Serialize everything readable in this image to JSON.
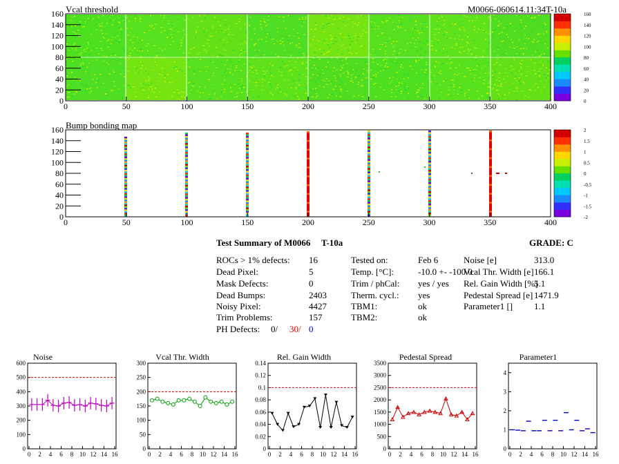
{
  "header": {
    "module_id": "M0066-060614.11:34T-10a"
  },
  "colors": {
    "ref_line": "#d00000",
    "noise": "#c000c0",
    "vcal": "#00a000",
    "gain": "#000000",
    "pedestal": "#d00000",
    "param": "#0000c0"
  },
  "maps": [
    {
      "title": "Vcal threshold",
      "xticks": [
        "0",
        "50",
        "100",
        "150",
        "200",
        "250",
        "300",
        "350",
        "400"
      ],
      "yticks": [
        "0",
        "20",
        "40",
        "60",
        "80",
        "100",
        "120",
        "140",
        "160"
      ],
      "zticks": [
        "0",
        "20",
        "40",
        "60",
        "80",
        "100",
        "120",
        "140",
        "160"
      ]
    },
    {
      "title": "Bump bonding map",
      "xticks": [
        "0",
        "50",
        "100",
        "150",
        "200",
        "250",
        "300",
        "350",
        "400"
      ],
      "yticks": [
        "0",
        "20",
        "40",
        "60",
        "80",
        "100",
        "120",
        "140",
        "160"
      ],
      "zticks": [
        "-2",
        "-1.5",
        "-1",
        "-0.5",
        "0",
        "0.5",
        "1",
        "1.5",
        "2"
      ]
    }
  ],
  "summary": {
    "title": "Test Summary of M0066",
    "temp_label": "T-10a",
    "grade": "GRADE:  C",
    "col1": [
      {
        "label": "ROCs > 1% defects:",
        "value": "16"
      },
      {
        "label": "Dead Pixel:",
        "value": "5"
      },
      {
        "label": "Mask Defects:",
        "value": "0"
      },
      {
        "label": "Dead Bumps:",
        "value": "2403"
      },
      {
        "label": "Noisy Pixel:",
        "value": "4427"
      },
      {
        "label": "Trim Problems:",
        "value": "157"
      }
    ],
    "ph_defects": {
      "label": "PH Defects:",
      "v1": "0/",
      "v2": "30/",
      "v3": "0"
    },
    "col2": [
      {
        "label": "Tested on:",
        "value": "Feb 6"
      },
      {
        "label": "Temp. [°C]:",
        "value": "-10.0 +- -100.0"
      },
      {
        "label": "Trim / phCal:",
        "value": "yes / yes"
      },
      {
        "label": "Therm. cycl.:",
        "value": "yes"
      },
      {
        "label": "TBM1:",
        "value": "ok"
      },
      {
        "label": "TBM2:",
        "value": "ok"
      }
    ],
    "col3": [
      {
        "label": "Noise [e]",
        "value": "313.0"
      },
      {
        "label": "Vcal Thr. Width [e]",
        "value": "166.1"
      },
      {
        "label": "Rel. Gain Width [%]",
        "value": "5.1"
      },
      {
        "label": "Pedestal Spread [e]",
        "value": "1471.9"
      },
      {
        "label": "Parameter1 []",
        "value": "1.1"
      }
    ]
  },
  "chart_data": [
    {
      "type": "scatter",
      "title": "Noise",
      "ylim": [
        0,
        600
      ],
      "yticks": [
        "0",
        "100",
        "200",
        "300",
        "400",
        "500",
        "600"
      ],
      "xticks": [
        "0",
        "2",
        "4",
        "6",
        "8",
        "10",
        "12",
        "14",
        "16"
      ],
      "ref": 500,
      "marker": "cross",
      "x": [
        0,
        1,
        2,
        3,
        4,
        5,
        6,
        7,
        8,
        9,
        10,
        11,
        12,
        13,
        14,
        15
      ],
      "values": [
        310,
        310,
        310,
        340,
        305,
        300,
        320,
        325,
        305,
        310,
        300,
        320,
        315,
        305,
        300,
        320
      ]
    },
    {
      "type": "line",
      "title": "Vcal Thr. Width",
      "ylim": [
        0,
        300
      ],
      "yticks": [
        "0",
        "50",
        "100",
        "150",
        "200",
        "250",
        "300"
      ],
      "xticks": [
        "0",
        "2",
        "4",
        "6",
        "8",
        "10",
        "12",
        "14",
        "16"
      ],
      "ref": 200,
      "marker": "circle",
      "x": [
        0,
        1,
        2,
        3,
        4,
        5,
        6,
        7,
        8,
        9,
        10,
        11,
        12,
        13,
        14,
        15
      ],
      "values": [
        170,
        175,
        165,
        160,
        155,
        170,
        170,
        175,
        165,
        150,
        180,
        165,
        160,
        165,
        155,
        165
      ]
    },
    {
      "type": "line",
      "title": "Rel. Gain Width",
      "ylim": [
        0,
        0.14
      ],
      "yticks": [
        "0",
        "0.02",
        "0.04",
        "0.06",
        "0.08",
        "0.1",
        "0.12",
        "0.14"
      ],
      "xticks": [
        "0",
        "2",
        "4",
        "6",
        "8",
        "10",
        "12",
        "14",
        "16"
      ],
      "ref": 0.1,
      "marker": "triangle-down",
      "x": [
        0,
        1,
        2,
        3,
        4,
        5,
        6,
        7,
        8,
        9,
        10,
        11,
        12,
        13,
        14,
        15
      ],
      "values": [
        0.058,
        0.04,
        0.03,
        0.058,
        0.036,
        0.04,
        0.068,
        0.07,
        0.082,
        0.035,
        0.088,
        0.035,
        0.076,
        0.038,
        0.035,
        0.052
      ]
    },
    {
      "type": "line",
      "title": "Pedestal Spread",
      "ylim": [
        0,
        3500
      ],
      "yticks": [
        "0",
        "500",
        "1000",
        "1500",
        "2000",
        "2500",
        "3000",
        "3500"
      ],
      "xticks": [
        "0",
        "2",
        "4",
        "6",
        "8",
        "10",
        "12",
        "14",
        "16"
      ],
      "ref": 2500,
      "marker": "triangle-up",
      "x": [
        0,
        1,
        2,
        3,
        4,
        5,
        6,
        7,
        8,
        9,
        10,
        11,
        12,
        13,
        14,
        15
      ],
      "values": [
        1200,
        1700,
        1300,
        1450,
        1500,
        1400,
        1500,
        1550,
        1500,
        1450,
        2050,
        1400,
        1350,
        1500,
        1200,
        1450
      ]
    },
    {
      "type": "scatter",
      "title": "Parameter1",
      "ylim": [
        0,
        4.5
      ],
      "yticks": [
        "0",
        "1",
        "2",
        "3",
        "4"
      ],
      "xticks": [
        "0",
        "2",
        "4",
        "6",
        "8",
        "10",
        "12",
        "14",
        "16"
      ],
      "ref": null,
      "marker": "hbar",
      "x": [
        0,
        1,
        2,
        3,
        4,
        5,
        6,
        7,
        8,
        9,
        10,
        11,
        12,
        13,
        14,
        15
      ],
      "values": [
        1.0,
        0.98,
        0.95,
        1.45,
        0.95,
        0.95,
        1.5,
        0.95,
        1.5,
        0.95,
        1.9,
        1.0,
        1.5,
        0.95,
        1.05,
        0.85
      ]
    }
  ]
}
